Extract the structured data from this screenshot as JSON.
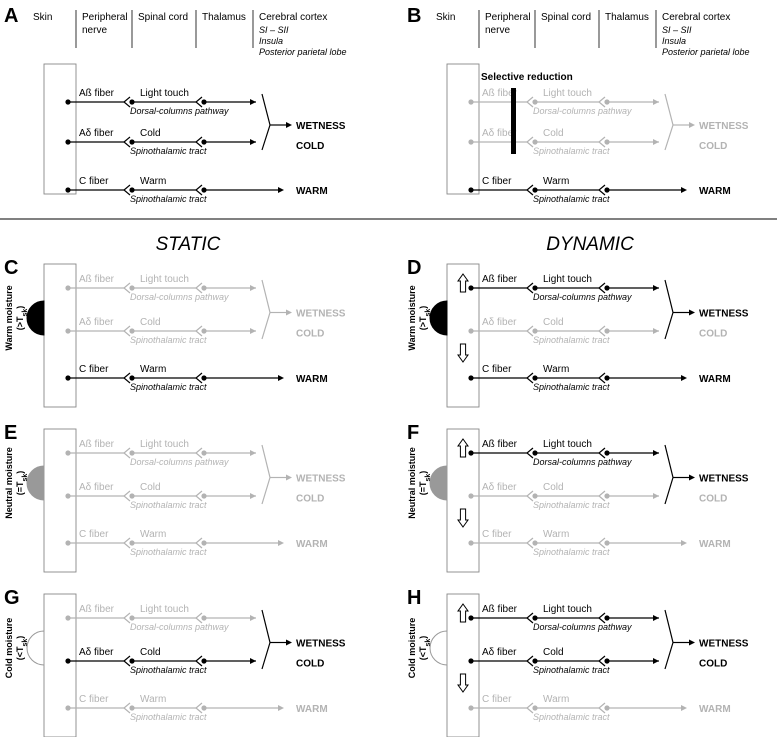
{
  "colors": {
    "active": "#000000",
    "inactive": "#b3b3b3",
    "neutral": "#999999",
    "box": "#888888"
  },
  "header": {
    "skin": "Skin",
    "peripheral": "Peripheral",
    "nerve": "nerve",
    "spinal": "Spinal cord",
    "thalamus": "Thalamus",
    "cortex": "Cerebral cortex",
    "cortex_areas": [
      "SI – SII",
      "Insula",
      "Posterior parietal lobe"
    ]
  },
  "fibers": [
    {
      "fiber": "Aß fiber",
      "modality": "Light touch",
      "pathway": "Dorsal-columns pathway"
    },
    {
      "fiber": "Aδ fiber",
      "modality": "Cold",
      "pathway": "Spinothalamic tract"
    },
    {
      "fiber": "C fiber",
      "modality": "Warm",
      "pathway": "Spinothalamic tract"
    }
  ],
  "outputs": {
    "wetness": "WETNESS",
    "cold": "COLD",
    "warm": "WARM"
  },
  "titles": {
    "static": "STATIC",
    "dynamic": "DYNAMIC"
  },
  "selective_reduction": "Selective reduction",
  "moisture": {
    "warm": {
      "label": "Warm  moisture",
      "sub": "(>T",
      "subscript": "sk",
      "close": ")"
    },
    "neutral": {
      "label": "Neutral  moisture",
      "sub": "(=T",
      "subscript": "sk",
      "close": ")"
    },
    "cold": {
      "label": "Cold  moisture",
      "sub": "(<T",
      "subscript": "sk",
      "close": ")"
    }
  },
  "panels": [
    {
      "letter": "A",
      "header": true,
      "rows": [
        1,
        1,
        1
      ],
      "wetness": 1,
      "cold": 1,
      "warm": 1,
      "moisture": "none",
      "arrows": false,
      "selective": false
    },
    {
      "letter": "B",
      "header": true,
      "rows": [
        0,
        0,
        1
      ],
      "wetness": 0,
      "cold": 0,
      "warm": 1,
      "moisture": "none",
      "arrows": false,
      "selective": true
    },
    {
      "letter": "C",
      "header": false,
      "rows": [
        0,
        0,
        1
      ],
      "wetness": 0,
      "cold": 0,
      "warm": 1,
      "moisture": "warm",
      "arrows": false,
      "selective": false
    },
    {
      "letter": "D",
      "header": false,
      "rows": [
        1,
        0,
        1
      ],
      "wetness": 1,
      "cold": 0,
      "warm": 1,
      "moisture": "warm",
      "arrows": true,
      "selective": false
    },
    {
      "letter": "E",
      "header": false,
      "rows": [
        0,
        0,
        0
      ],
      "wetness": 0,
      "cold": 0,
      "warm": 0,
      "moisture": "neutral",
      "arrows": false,
      "selective": false
    },
    {
      "letter": "F",
      "header": false,
      "rows": [
        1,
        0,
        0
      ],
      "wetness": 1,
      "cold": 0,
      "warm": 0,
      "moisture": "neutral",
      "arrows": true,
      "selective": false
    },
    {
      "letter": "G",
      "header": false,
      "rows": [
        0,
        1,
        0
      ],
      "wetness": 1,
      "cold": 1,
      "warm": 0,
      "moisture": "cold",
      "arrows": false,
      "selective": false
    },
    {
      "letter": "H",
      "header": false,
      "rows": [
        1,
        1,
        0
      ],
      "wetness": 1,
      "cold": 1,
      "warm": 0,
      "moisture": "cold",
      "arrows": true,
      "selective": false
    }
  ]
}
